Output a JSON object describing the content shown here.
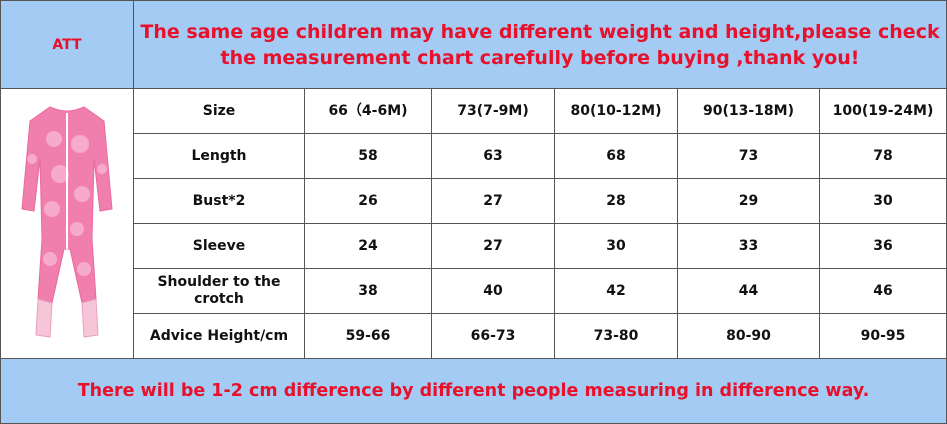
{
  "header": {
    "att": "ATT",
    "notice": [
      "The same age children may have different weight and height,please check",
      "the measurement chart carefully before buying ,thank you!"
    ]
  },
  "table": {
    "header": [
      "Size",
      "66（4-6M)",
      "73(7-9M)",
      "80(10-12M)",
      "90(13-18M)",
      "100(19-24M)"
    ],
    "rows": [
      [
        "Length",
        58,
        63,
        68,
        73,
        78
      ],
      [
        "Bust*2",
        26,
        27,
        28,
        29,
        30
      ],
      [
        "Sleeve",
        24,
        27,
        30,
        33,
        36
      ],
      [
        "Shoulder to the crotch",
        38,
        40,
        42,
        44,
        46
      ],
      [
        "Advice Height/cm",
        "59-66",
        "66-73",
        "73-80",
        "80-90",
        "90-95"
      ]
    ]
  },
  "footer": {
    "note": "There will be 1-2 cm difference by different people measuring in difference way."
  }
}
